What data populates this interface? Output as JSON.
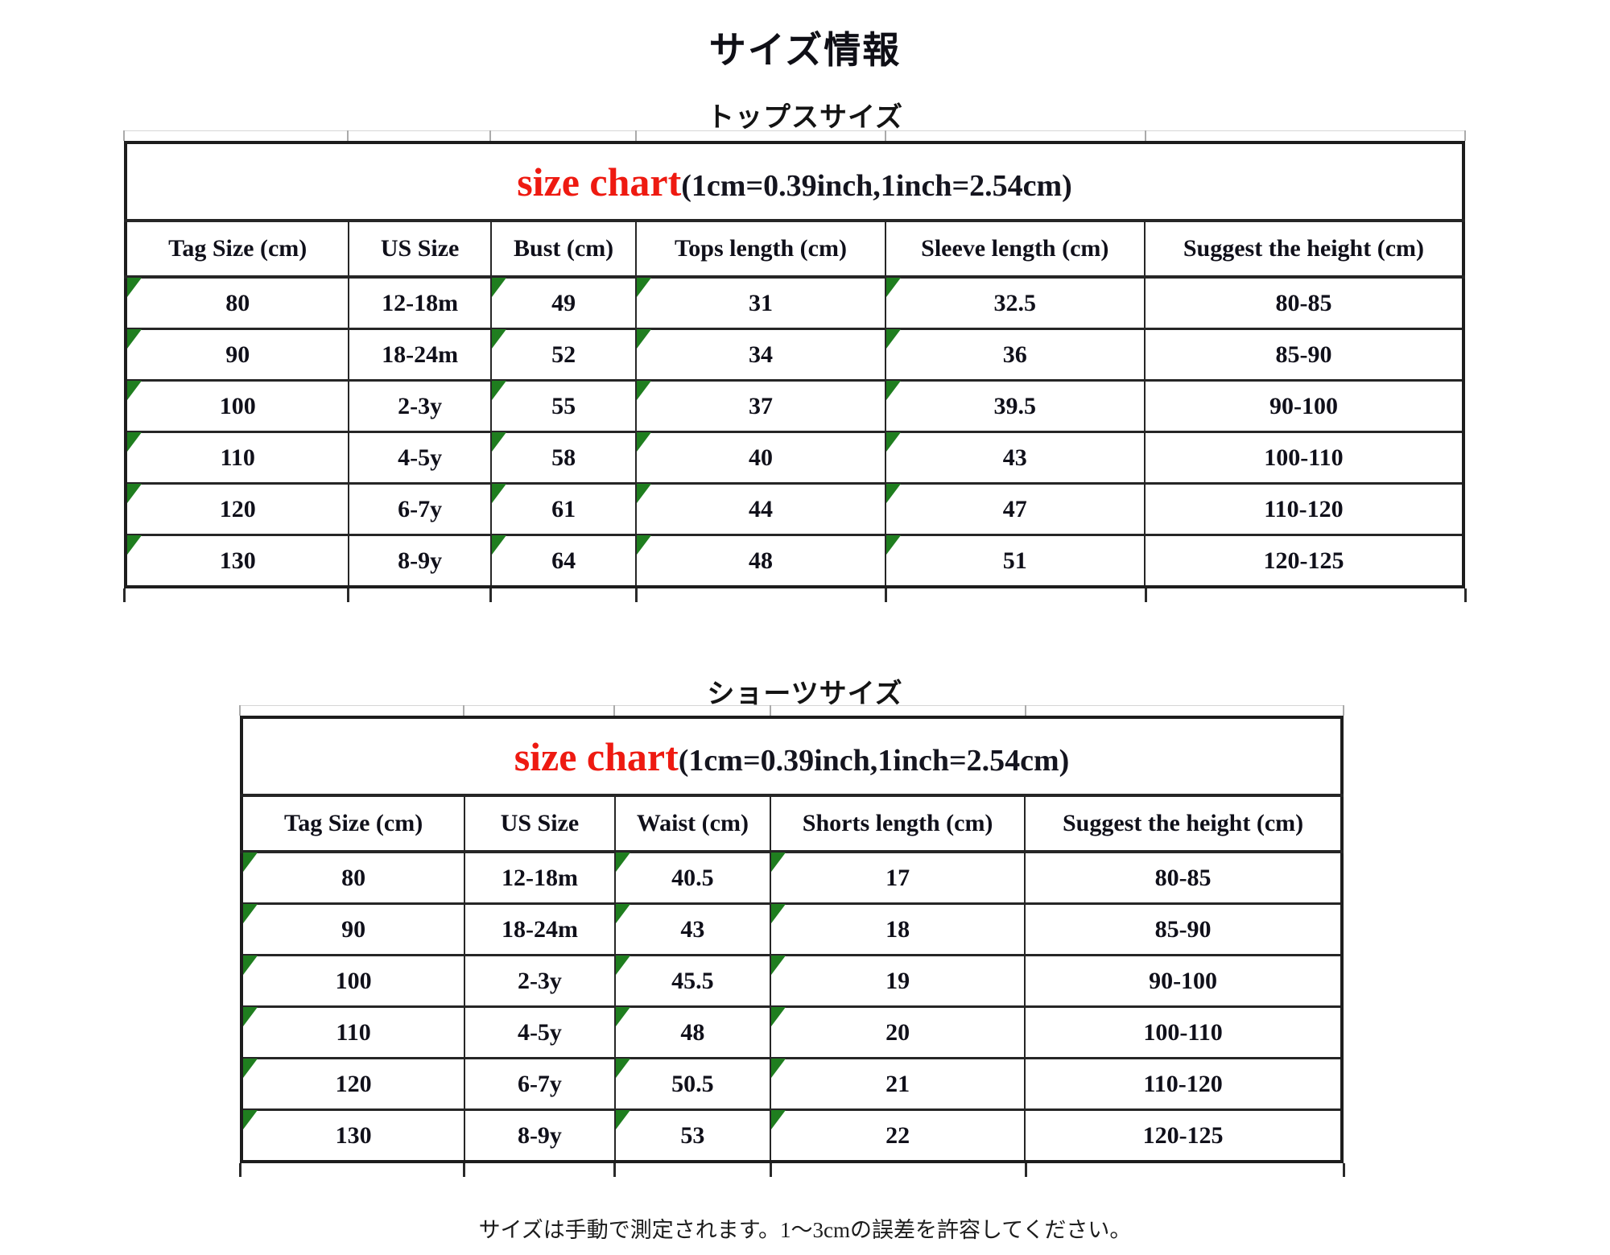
{
  "page": {
    "title": "サイズ情報",
    "footer": "サイズは手動で測定されます。1〜3cmの誤差を許容してください。"
  },
  "colors": {
    "accent_red": "#ee1a11",
    "marker_green": "#1f7e1f",
    "border_dark": "#262626",
    "tick_gray": "#ababab"
  },
  "tables": [
    {
      "section_title": "トップスサイズ",
      "chart_title": "size chart",
      "chart_subtitle": "(1cm=0.39inch,1inch=2.54cm)",
      "columns": [
        "Tag Size (cm)",
        "US Size",
        "Bust (cm)",
        "Tops length (cm)",
        "Sleeve length (cm)",
        "Suggest the height (cm)"
      ],
      "col_widths_pct": [
        16.69,
        10.62,
        10.86,
        18.61,
        19.39,
        23.83
      ],
      "marked_columns": [
        0,
        2,
        3,
        4
      ],
      "rows": [
        [
          "80",
          "12-18m",
          "49",
          "31",
          "32.5",
          "80-85"
        ],
        [
          "90",
          "18-24m",
          "52",
          "34",
          "36",
          "85-90"
        ],
        [
          "100",
          "2-3y",
          "55",
          "37",
          "39.5",
          "90-100"
        ],
        [
          "110",
          "4-5y",
          "58",
          "40",
          "43",
          "100-110"
        ],
        [
          "120",
          "6-7y",
          "61",
          "44",
          "47",
          "110-120"
        ],
        [
          "130",
          "8-9y",
          "64",
          "48",
          "51",
          "120-125"
        ]
      ]
    },
    {
      "section_title": "ショーツサイズ",
      "chart_title": "size chart",
      "chart_subtitle": "(1cm=0.39inch,1inch=2.54cm)",
      "columns": [
        "Tag Size (cm)",
        "US Size",
        "Waist (cm)",
        "Shorts length (cm)",
        "Suggest the height (cm)"
      ],
      "col_widths_pct": [
        20.28,
        13.64,
        14.15,
        23.12,
        28.81
      ],
      "marked_columns": [
        0,
        2,
        3
      ],
      "rows": [
        [
          "80",
          "12-18m",
          "40.5",
          "17",
          "80-85"
        ],
        [
          "90",
          "18-24m",
          "43",
          "18",
          "85-90"
        ],
        [
          "100",
          "2-3y",
          "45.5",
          "19",
          "90-100"
        ],
        [
          "110",
          "4-5y",
          "48",
          "20",
          "100-110"
        ],
        [
          "120",
          "6-7y",
          "50.5",
          "21",
          "110-120"
        ],
        [
          "130",
          "8-9y",
          "53",
          "22",
          "120-125"
        ]
      ]
    }
  ]
}
